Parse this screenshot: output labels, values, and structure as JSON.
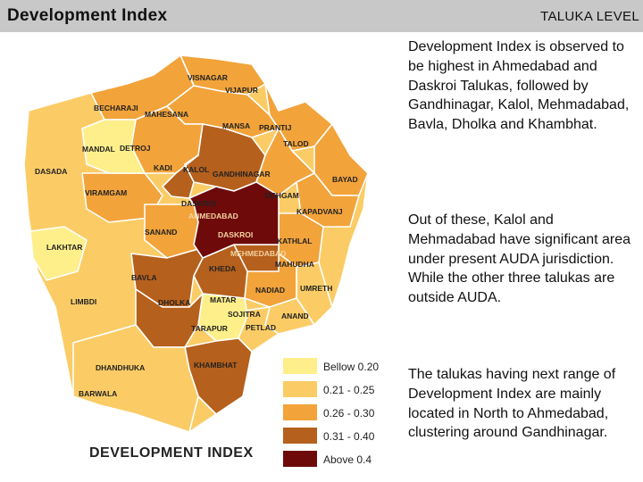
{
  "header": {
    "title": "Development Index",
    "level": "TALUKA LEVEL"
  },
  "map": {
    "title": "DEVELOPMENT INDEX",
    "colors": {
      "below_020": "#ffef8a",
      "r021_025": "#fbcc66",
      "r026_030": "#f2a33a",
      "r031_040": "#b5601c",
      "above_04": "#6e0a0a"
    },
    "legend": [
      {
        "label": "Bellow 0.20",
        "color": "#ffef8a"
      },
      {
        "label": "0.21 - 0.25",
        "color": "#fbcc66"
      },
      {
        "label": "0.26 - 0.30",
        "color": "#f2a33a"
      },
      {
        "label": "0.31 - 0.40",
        "color": "#b5601c"
      },
      {
        "label": "Above 0.4",
        "color": "#6e0a0a"
      }
    ],
    "labels": [
      "VISNAGAR",
      "VIJAPUR",
      "BECHARAJI",
      "MAHESANA",
      "MANSA",
      "PRANTIJ",
      "MANDAL",
      "DETROJ",
      "TALOD",
      "DASADA",
      "KADI",
      "KALOL",
      "GANDHINAGAR",
      "BAYAD",
      "VIRAMGAM",
      "DEHGAM",
      "DASKROI",
      "AHMEDABAD",
      "KAPADVANJ",
      "SANAND",
      "DASKROI",
      "KATHLAL",
      "LAKHTAR",
      "MEHMEDABAD",
      "MAHUDHA",
      "KHEDA",
      "BAVLA",
      "NADIAD",
      "UMRETH",
      "LIMBDI",
      "DHOLKA",
      "MATAR",
      "SOJITRA",
      "ANAND",
      "TARAPUR",
      "PETLAD",
      "KHAMBHAT",
      "DHANDHUKA",
      "BARWALA"
    ]
  },
  "text": {
    "p1": "Development Index is observed to be highest in Ahmedabad and Daskroi Talukas, followed by Gandhinagar, Kalol, Mehmadabad, Bavla, Dholka and Khambhat.",
    "p2": "Out of these, Kalol and Mehmadabad have significant area under present AUDA jurisdiction. While the other three talukas are outside AUDA.",
    "p3": "The talukas having next range of Development Index are mainly located in North to Ahmedabad, clustering around Gandhinagar."
  }
}
